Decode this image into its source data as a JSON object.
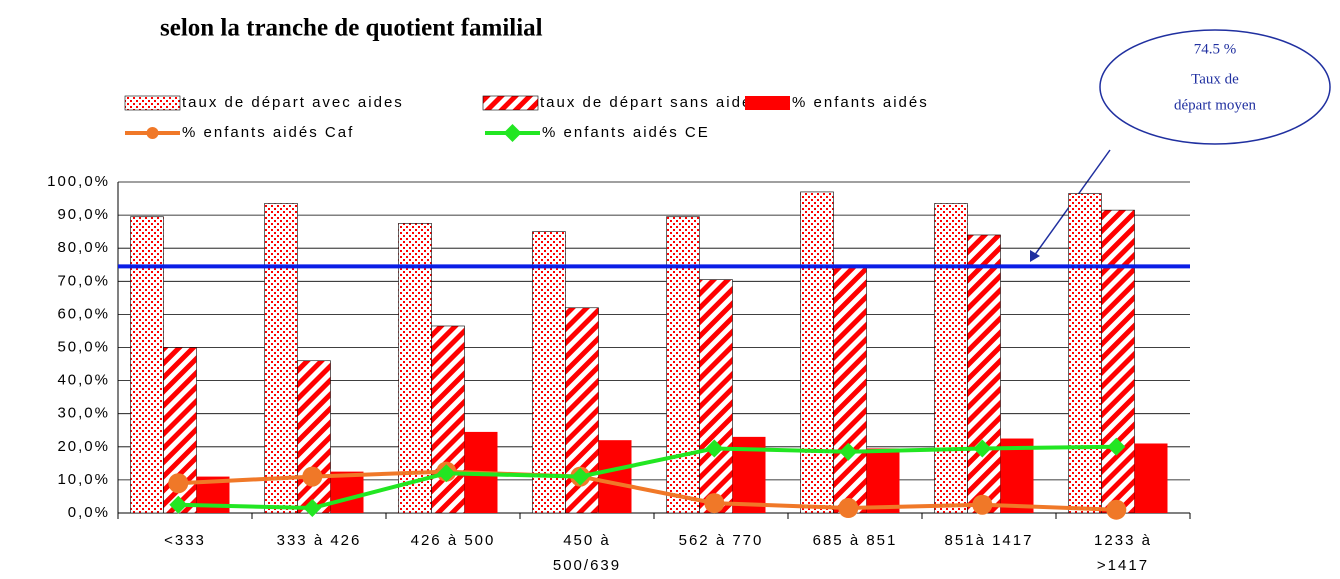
{
  "chart_data": {
    "type": "bar",
    "title": "selon la tranche de quotient familial",
    "categories": [
      "<333",
      "333 à 426",
      "426 à 500",
      [
        "450 à",
        "500/639"
      ],
      "562 à 770",
      "685 à 851",
      "851à 1417",
      [
        "1233 à",
        ">1417"
      ]
    ],
    "series": [
      {
        "name": "taux de départ avec aides",
        "type": "bar",
        "pattern": "dots",
        "color": "#ff0000",
        "values": [
          89.5,
          93.5,
          87.5,
          85,
          89.5,
          97,
          93.5,
          96.5
        ]
      },
      {
        "name": "taux de départ sans aides",
        "type": "bar",
        "pattern": "hatch",
        "color": "#ff0000",
        "values": [
          50,
          46,
          56.5,
          62,
          70.5,
          74.5,
          84,
          91.5
        ]
      },
      {
        "name": "% enfants aidés",
        "type": "bar",
        "pattern": "solid",
        "color": "#ff0000",
        "values": [
          11,
          12.5,
          24.5,
          22,
          23,
          19.5,
          22.5,
          21
        ]
      },
      {
        "name": "% enfants aidés Caf",
        "type": "line",
        "marker": "circle",
        "color": "#f07828",
        "values": [
          9,
          11,
          12.5,
          11,
          3,
          1.5,
          2.5,
          1
        ]
      },
      {
        "name": "% enfants aidés CE",
        "type": "line",
        "marker": "diamond",
        "color": "#22e622",
        "values": [
          2.5,
          1.5,
          12,
          11,
          19.5,
          18.5,
          19.5,
          20
        ]
      }
    ],
    "ylim": [
      0,
      100
    ],
    "yticks": [
      {
        "value": 0,
        "label": "0,0%"
      },
      {
        "value": 10,
        "label": "10,0%"
      },
      {
        "value": 20,
        "label": "20,0%"
      },
      {
        "value": 30,
        "label": "30,0%"
      },
      {
        "value": 40,
        "label": "40,0%"
      },
      {
        "value": 50,
        "label": "50,0%"
      },
      {
        "value": 60,
        "label": "60,0%"
      },
      {
        "value": 70,
        "label": "70,0%"
      },
      {
        "value": 80,
        "label": "80,0%"
      },
      {
        "value": 90,
        "label": "90,0%"
      },
      {
        "value": 100,
        "label": "100,0%"
      }
    ],
    "grid": true,
    "reference_line": {
      "value": 74.5,
      "label": "74.5 %",
      "text": [
        "Taux de",
        "départ moyen"
      ],
      "color": "#0a1ee6"
    }
  }
}
